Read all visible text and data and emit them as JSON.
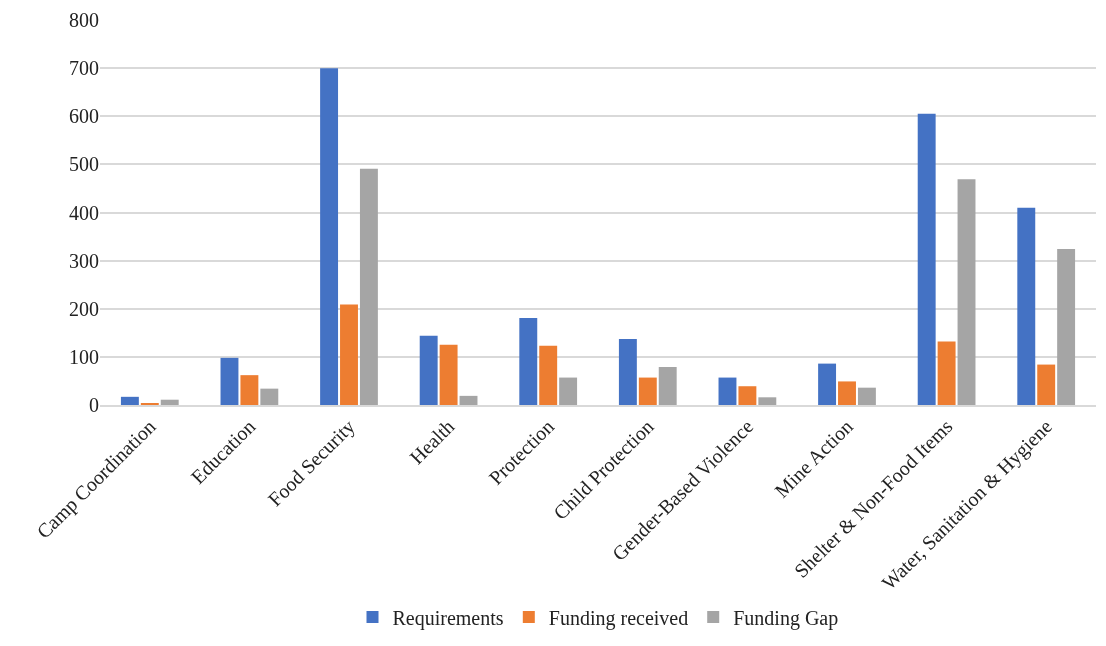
{
  "chart_data": {
    "type": "bar",
    "categories": [
      "Camp Coordination",
      "Education",
      "Food Security",
      "Health",
      "Protection",
      "Child Protection",
      "Gender-Based Violence",
      "Mine Action",
      "Shelter & Non-Food Items",
      "Water, Sanitation & Hygiene"
    ],
    "series": [
      {
        "name": "Requirements",
        "color": "#4472c4",
        "values": [
          17,
          98,
          700,
          144,
          181,
          137,
          57,
          86,
          605,
          410
        ]
      },
      {
        "name": "Funding received",
        "color": "#ed7d31",
        "values": [
          3,
          62,
          209,
          125,
          123,
          57,
          39,
          49,
          132,
          84
        ]
      },
      {
        "name": "Funding Gap",
        "color": "#a5a5a5",
        "values": [
          11,
          34,
          491,
          19,
          57,
          79,
          16,
          36,
          469,
          324
        ]
      }
    ],
    "ylim": [
      0,
      800
    ],
    "yticks": [
      0,
      100,
      200,
      300,
      400,
      500,
      600,
      700,
      800
    ],
    "grid": "y",
    "legend": "bottom"
  }
}
